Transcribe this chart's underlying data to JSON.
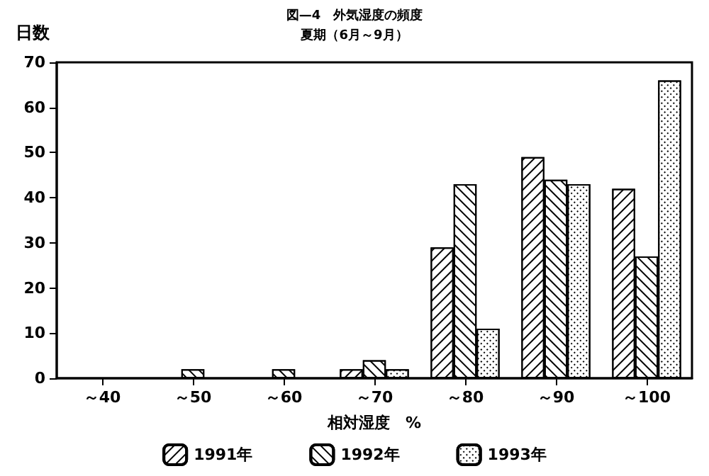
{
  "chart_data": {
    "type": "bar",
    "title": "図—4　外気湿度の頻度",
    "subtitle": "夏期（6月～9月）",
    "xlabel": "相対湿度　%",
    "ylabel": "日数",
    "categories": [
      "～40",
      "～50",
      "～60",
      "～70",
      "～80",
      "～90",
      "～100"
    ],
    "series": [
      {
        "name": "1991年",
        "color": "#ffffff",
        "values": [
          0,
          0,
          0,
          2,
          29,
          49,
          42
        ]
      },
      {
        "name": "1992年",
        "color": "#ffffff",
        "values": [
          0,
          2,
          2,
          4,
          43,
          44,
          27
        ]
      },
      {
        "name": "1993年",
        "color": "#ffffff",
        "values": [
          0,
          0,
          0,
          2,
          11,
          43,
          66
        ]
      }
    ],
    "ylim": [
      0,
      70
    ],
    "yticks": [
      0,
      10,
      20,
      30,
      40,
      50,
      60,
      70
    ],
    "grid": false,
    "legend": "bottom"
  }
}
